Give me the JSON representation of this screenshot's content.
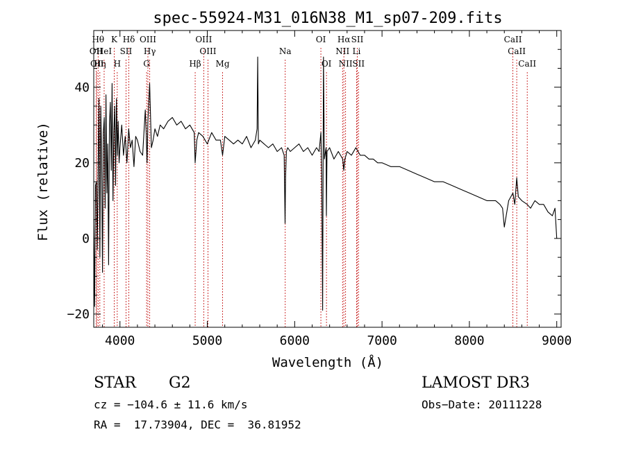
{
  "chart_data": {
    "type": "line",
    "title": "spec-55924-M31_016N38_M1_sp07-209.fits",
    "xlabel": "Wavelength (Å)",
    "ylabel": "Flux (relative)",
    "xlim": [
      3700,
      9050
    ],
    "ylim": [
      -23.5,
      55
    ],
    "x_ticks": [
      4000,
      5000,
      6000,
      7000,
      8000,
      9000
    ],
    "y_ticks": [
      -20,
      0,
      20,
      40
    ],
    "series": [
      {
        "name": "spectrum",
        "x": [
          3700,
          3710,
          3720,
          3730,
          3740,
          3750,
          3760,
          3770,
          3780,
          3790,
          3800,
          3810,
          3820,
          3830,
          3840,
          3850,
          3860,
          3870,
          3880,
          3890,
          3900,
          3910,
          3920,
          3930,
          3940,
          3950,
          3960,
          3970,
          3980,
          3990,
          4000,
          4020,
          4040,
          4060,
          4080,
          4100,
          4120,
          4140,
          4160,
          4180,
          4200,
          4230,
          4260,
          4290,
          4300,
          4310,
          4320,
          4340,
          4360,
          4380,
          4400,
          4430,
          4460,
          4500,
          4550,
          4600,
          4650,
          4700,
          4750,
          4800,
          4850,
          4861,
          4880,
          4900,
          4950,
          5000,
          5050,
          5100,
          5150,
          5175,
          5200,
          5250,
          5300,
          5350,
          5400,
          5450,
          5500,
          5550,
          5570,
          5577,
          5585,
          5600,
          5650,
          5700,
          5750,
          5800,
          5850,
          5880,
          5890,
          5896,
          5905,
          5920,
          5950,
          6000,
          6050,
          6100,
          6150,
          6200,
          6250,
          6280,
          6300,
          6310,
          6320,
          6330,
          6340,
          6360,
          6363,
          6370,
          6400,
          6450,
          6500,
          6550,
          6563,
          6575,
          6600,
          6650,
          6700,
          6750,
          6800,
          6850,
          6900,
          6950,
          7000,
          7100,
          7200,
          7300,
          7400,
          7500,
          7600,
          7700,
          7800,
          7900,
          8000,
          8100,
          8200,
          8300,
          8350,
          8380,
          8400,
          8450,
          8498,
          8520,
          8542,
          8560,
          8600,
          8662,
          8700,
          8750,
          8800,
          8850,
          8900,
          8950,
          8980,
          9000
        ],
        "values": [
          5,
          -18,
          14,
          15,
          -3,
          18,
          37,
          -5,
          35,
          22,
          -9,
          28,
          32,
          8,
          38,
          12,
          25,
          -7,
          30,
          36,
          18,
          41,
          10,
          28,
          35,
          14,
          37,
          22,
          31,
          20,
          24,
          30,
          22,
          27,
          20,
          29,
          24,
          26,
          19,
          27,
          26,
          23,
          22,
          34,
          28,
          20,
          31,
          41,
          24,
          26,
          29,
          27,
          30,
          29,
          31,
          32,
          30,
          31,
          29,
          30,
          28,
          20,
          26,
          28,
          27,
          25,
          28,
          26,
          26,
          22,
          27,
          26,
          25,
          26,
          25,
          27,
          24,
          26,
          29,
          48,
          25,
          26,
          25,
          24,
          25,
          23,
          24,
          22,
          4,
          16,
          23,
          24,
          23,
          24,
          25,
          23,
          24,
          22,
          24,
          23,
          28,
          17,
          -19,
          48,
          21,
          24,
          6,
          23,
          24,
          21,
          23,
          21,
          18,
          21,
          23,
          22,
          24,
          22,
          22,
          21,
          21,
          20,
          20,
          19,
          19,
          18,
          17,
          16,
          15,
          15,
          14,
          13,
          12,
          11,
          10,
          10,
          9,
          8,
          3,
          10,
          12,
          9,
          16,
          11,
          10,
          9,
          8,
          10,
          9,
          9,
          7,
          6,
          8,
          0
        ]
      }
    ],
    "line_marks": [
      {
        "label": "OII",
        "x": 3727,
        "row": 2
      },
      {
        "label": "Hθ",
        "x": 3750,
        "row": 1
      },
      {
        "label": "OII",
        "x": 3737,
        "row": 3
      },
      {
        "label": "Hη",
        "x": 3770,
        "row": 3
      },
      {
        "label": "HeI",
        "x": 3819,
        "row": 2
      },
      {
        "label": "K",
        "x": 3934,
        "row": 1
      },
      {
        "label": "H",
        "x": 3969,
        "row": 3
      },
      {
        "label": "SII",
        "x": 4069,
        "row": 2
      },
      {
        "label": "Hδ",
        "x": 4102,
        "row": 1
      },
      {
        "label": "OIII",
        "x": 4320,
        "row": 1
      },
      {
        "label": "Hγ",
        "x": 4341,
        "row": 2
      },
      {
        "label": "G",
        "x": 4305,
        "row": 3
      },
      {
        "label": "Hβ",
        "x": 4861,
        "row": 3
      },
      {
        "label": "OIII",
        "x": 4959,
        "row": 1
      },
      {
        "label": "OIII",
        "x": 5007,
        "row": 2
      },
      {
        "label": "Mg",
        "x": 5175,
        "row": 3
      },
      {
        "label": "Na",
        "x": 5892,
        "row": 2
      },
      {
        "label": "OI",
        "x": 6300,
        "row": 1
      },
      {
        "label": "OI",
        "x": 6364,
        "row": 3
      },
      {
        "label": "Hα",
        "x": 6563,
        "row": 1
      },
      {
        "label": "NII",
        "x": 6548,
        "row": 2
      },
      {
        "label": "NII",
        "x": 6583,
        "row": 3
      },
      {
        "label": "SII",
        "x": 6717,
        "row": 1
      },
      {
        "label": "Li",
        "x": 6708,
        "row": 2
      },
      {
        "label": "SII",
        "x": 6731,
        "row": 3
      },
      {
        "label": "CaII",
        "x": 8498,
        "row": 1
      },
      {
        "label": "CaII",
        "x": 8542,
        "row": 2
      },
      {
        "label": "CaII",
        "x": 8662,
        "row": 3
      }
    ]
  },
  "info": {
    "class": "STAR",
    "subclass": "G2",
    "survey": "LAMOST DR3",
    "cz": "cz = −104.6 ± 11.6 km/s",
    "obs_date": "Obs−Date: 20111228",
    "coords": "RA =  17.73904, DEC =  36.81952"
  }
}
